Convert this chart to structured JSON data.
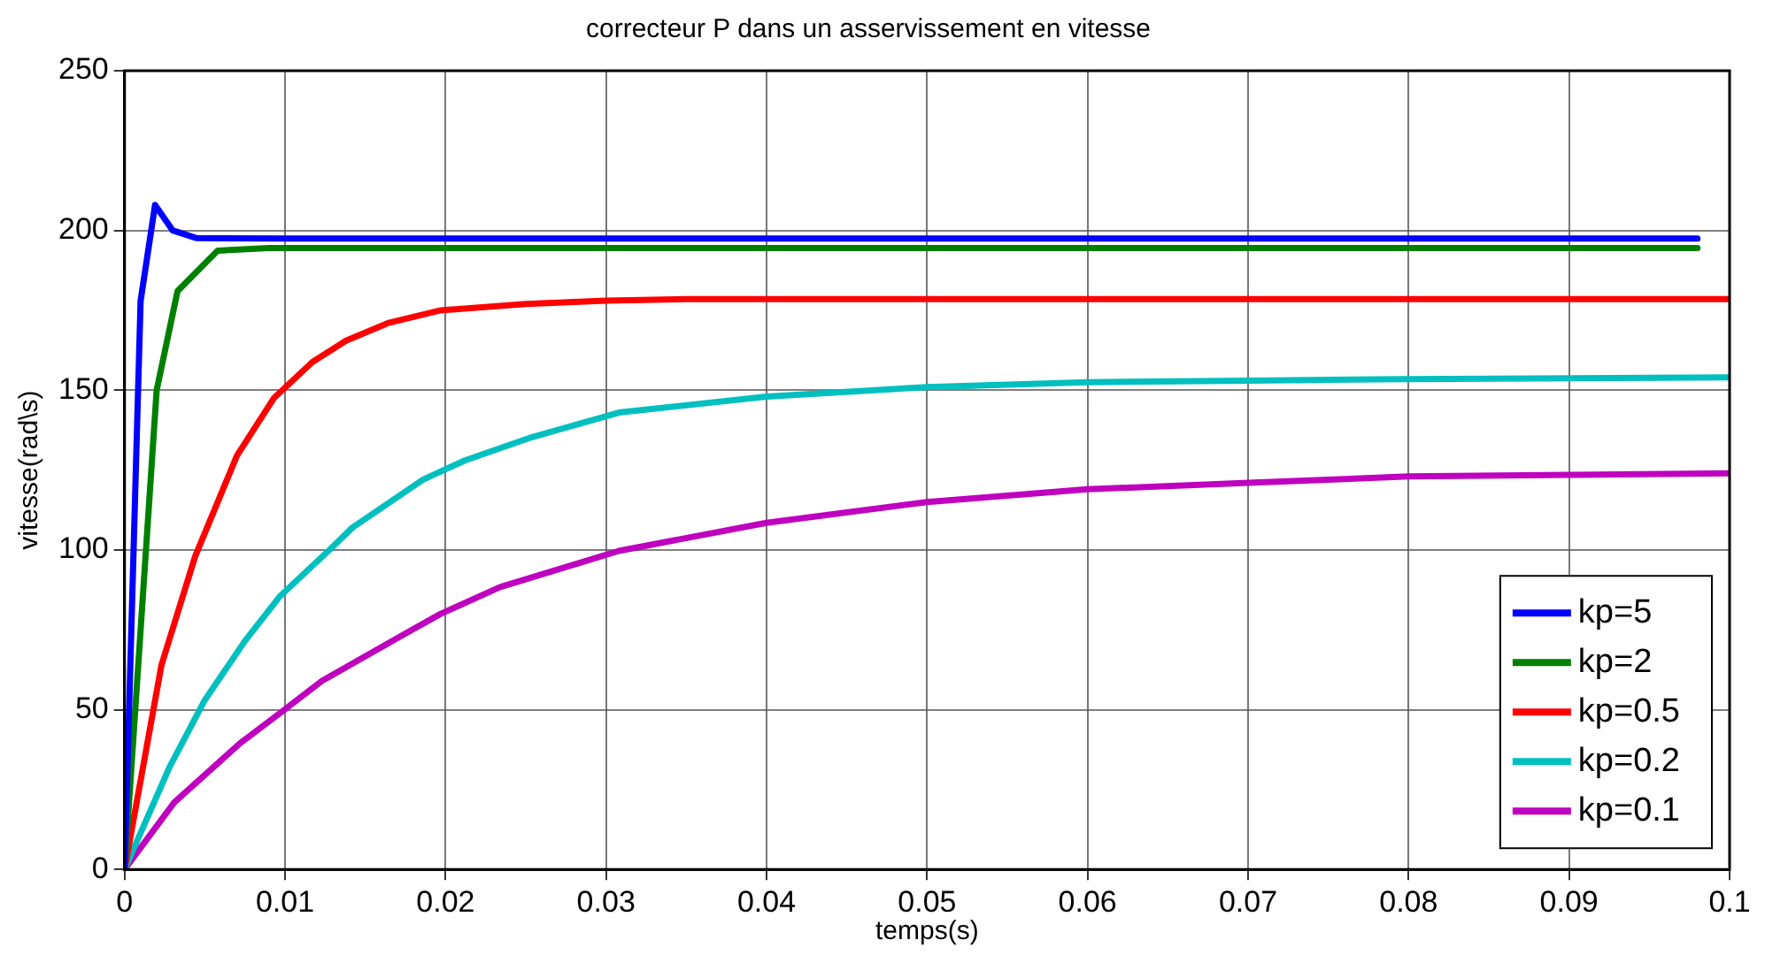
{
  "chart_data": {
    "type": "line",
    "title": "correcteur P dans un asservissement en vitesse",
    "xlabel": "temps(s)",
    "ylabel": "vitesse(rad\\s)",
    "xlim": [
      0,
      0.1
    ],
    "ylim": [
      0,
      250
    ],
    "xticks": [
      0,
      0.01,
      0.02,
      0.03,
      0.04,
      0.05,
      0.06,
      0.07,
      0.08,
      0.09,
      0.1
    ],
    "yticks": [
      0,
      50,
      100,
      150,
      200,
      250
    ],
    "grid": true,
    "legend": "bottom right",
    "marker": "none",
    "line_style": "solid",
    "series": [
      {
        "name": "kp=5",
        "color": "#0000ff",
        "x": [
          0,
          0.001,
          0.0019,
          0.003,
          0.0045,
          0.01,
          0.098
        ],
        "values": [
          0,
          178,
          208,
          200,
          197.6,
          197.5,
          197.5
        ]
      },
      {
        "name": "kp=2",
        "color": "#008000",
        "x": [
          0,
          0.002,
          0.0033,
          0.0058,
          0.009,
          0.098
        ],
        "values": [
          0,
          150,
          181,
          193.7,
          194.5,
          194.5
        ]
      },
      {
        "name": "kp=0.5",
        "color": "#ff0000",
        "x": [
          0,
          0.0023,
          0.0044,
          0.007,
          0.0093,
          0.0117,
          0.0138,
          0.0164,
          0.0197,
          0.025,
          0.03,
          0.035,
          0.1
        ],
        "values": [
          0,
          64,
          98,
          129.5,
          147.5,
          158.8,
          165.5,
          171,
          175,
          177,
          178,
          178.5,
          178.5
        ]
      },
      {
        "name": "kp=0.2",
        "color": "#00bfbf",
        "x": [
          0,
          0.0028,
          0.005,
          0.0075,
          0.0097,
          0.0127,
          0.0142,
          0.0186,
          0.0212,
          0.0252,
          0.0308,
          0.04,
          0.05,
          0.06,
          0.07,
          0.08,
          0.1
        ],
        "values": [
          0,
          32,
          53,
          71.5,
          85.6,
          99.7,
          107,
          122,
          128,
          135,
          143,
          148,
          151,
          152.5,
          153,
          153.5,
          154
        ]
      },
      {
        "name": "kp=0.1",
        "color": "#bf00bf",
        "x": [
          0,
          0.0031,
          0.0072,
          0.0097,
          0.0123,
          0.0172,
          0.0197,
          0.0234,
          0.0282,
          0.0308,
          0.04,
          0.05,
          0.06,
          0.07,
          0.08,
          0.09,
          0.1
        ],
        "values": [
          0,
          21,
          39.5,
          49,
          59,
          73,
          80,
          88.4,
          95.7,
          99.7,
          108.5,
          115,
          119,
          121,
          123,
          123.5,
          124
        ]
      }
    ]
  }
}
